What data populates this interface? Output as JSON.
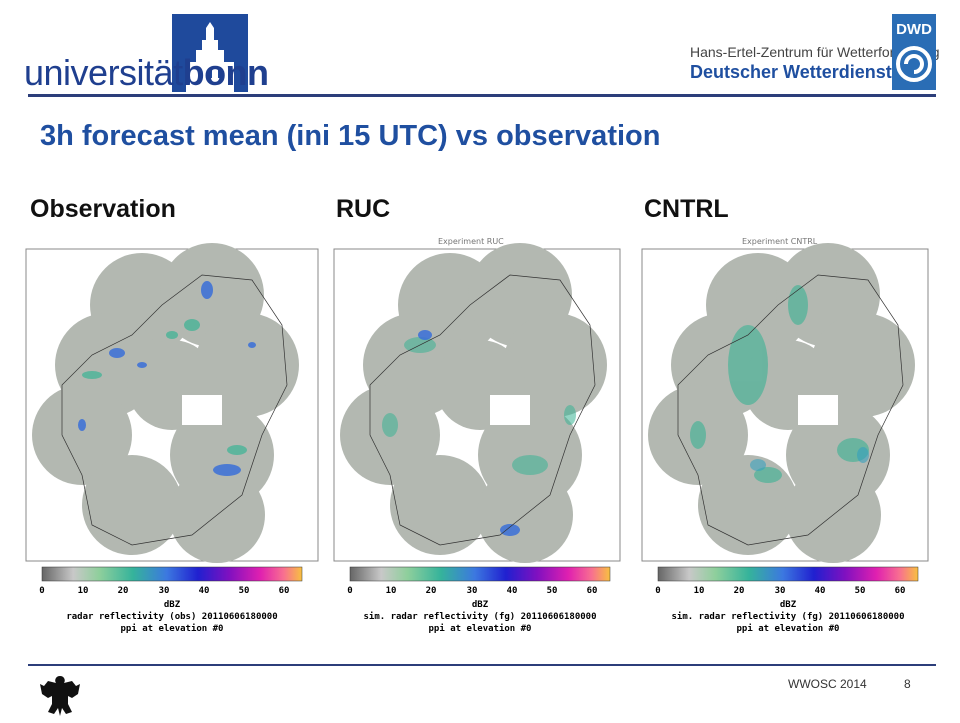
{
  "header": {
    "uni_logo": {
      "prefix": "universität",
      "bold": "bonn"
    },
    "dwd": {
      "line1": "Hans-Ertel-Zentrum für Wetterforschung",
      "line2": "Deutscher Wetterdienst",
      "badge": "DWD"
    }
  },
  "title": "3h forecast mean (ini 15 UTC) vs observation",
  "panels": [
    {
      "label": "Observation",
      "experiment": "",
      "caption_line1": "radar reflectivity (obs) 20110606180000",
      "caption_line2": "ppi at elevation #0"
    },
    {
      "label": "RUC",
      "experiment": "Experiment RUC",
      "caption_line1": "sim. radar reflectivity (fg) 20110606180000",
      "caption_line2": "ppi at elevation #0"
    },
    {
      "label": "CNTRL",
      "experiment": "Experiment CNTRL",
      "caption_line1": "sim. radar reflectivity (fg) 20110606180000",
      "caption_line2": "ppi at elevation #0"
    }
  ],
  "colorbar": {
    "ticks": [
      "0",
      "10",
      "20",
      "30",
      "40",
      "50",
      "60"
    ],
    "unit": "dBZ"
  },
  "footer": {
    "text": "WWOSC 2014",
    "page": "8"
  },
  "colors": {
    "accent": "#1f4fa0",
    "rule": "#2c3e7a",
    "map_base": "#b3b8b1"
  }
}
